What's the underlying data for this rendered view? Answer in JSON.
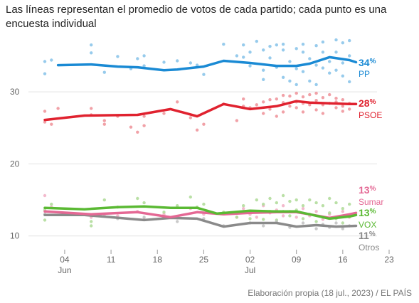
{
  "title": "Las líneas representan el promedio de votos de cada partido; cada punto es una encuesta individual",
  "source": "Elaboración propia (18 jul., 2023) / EL PAÍS",
  "chart_data": {
    "type": "line",
    "title": "Las líneas representan el promedio de votos de cada partido; cada punto es una encuesta individual",
    "xlabel": "",
    "ylabel": "",
    "x_range": [
      "2023-06-01",
      "2023-07-23"
    ],
    "ylim": [
      8,
      38
    ],
    "y_ticks": [
      10,
      20,
      30
    ],
    "x_ticks": [
      {
        "date": "2023-06-04",
        "label": "04",
        "month": "Jun"
      },
      {
        "date": "2023-06-11",
        "label": "11",
        "month": ""
      },
      {
        "date": "2023-06-18",
        "label": "18",
        "month": ""
      },
      {
        "date": "2023-06-25",
        "label": "25",
        "month": ""
      },
      {
        "date": "2023-07-02",
        "label": "02",
        "month": "Jul"
      },
      {
        "date": "2023-07-09",
        "label": "09",
        "month": ""
      },
      {
        "date": "2023-07-16",
        "label": "16",
        "month": ""
      },
      {
        "date": "2023-07-23",
        "label": "23",
        "month": ""
      }
    ],
    "grid": "horizontal",
    "series": [
      {
        "name": "PP",
        "label_value": "34",
        "pct": "%",
        "color": "#1a8ad4",
        "dot_color": "#8cc5ea",
        "x": [
          "2023-06-03",
          "2023-06-08",
          "2023-06-12",
          "2023-06-15",
          "2023-06-19",
          "2023-06-21",
          "2023-06-25",
          "2023-06-28",
          "2023-07-02",
          "2023-07-06",
          "2023-07-09",
          "2023-07-11",
          "2023-07-14",
          "2023-07-17",
          "2023-07-18"
        ],
        "y": [
          33.7,
          33.8,
          33.5,
          33.4,
          33.0,
          33.1,
          33.5,
          34.3,
          34.0,
          33.6,
          33.6,
          33.9,
          34.8,
          34.4,
          34.1
        ],
        "polls": [
          [
            "2023-06-01",
            34.2
          ],
          [
            "2023-06-01",
            32.5
          ],
          [
            "2023-06-02",
            34.4
          ],
          [
            "2023-06-08",
            36.5
          ],
          [
            "2023-06-08",
            35.4
          ],
          [
            "2023-06-10",
            32.7
          ],
          [
            "2023-06-12",
            34.9
          ],
          [
            "2023-06-14",
            33.2
          ],
          [
            "2023-06-15",
            34.6
          ],
          [
            "2023-06-16",
            35.0
          ],
          [
            "2023-06-16",
            33.6
          ],
          [
            "2023-06-19",
            34.1
          ],
          [
            "2023-06-21",
            34.3
          ],
          [
            "2023-06-23",
            34.0
          ],
          [
            "2023-06-24",
            33.7
          ],
          [
            "2023-06-25",
            32.4
          ],
          [
            "2023-06-28",
            36.6
          ],
          [
            "2023-06-30",
            35.0
          ],
          [
            "2023-07-01",
            34.8
          ],
          [
            "2023-07-01",
            36.5
          ],
          [
            "2023-07-02",
            35.5
          ],
          [
            "2023-07-02",
            33.6
          ],
          [
            "2023-07-03",
            37.0
          ],
          [
            "2023-07-04",
            35.8
          ],
          [
            "2023-07-04",
            31.7
          ],
          [
            "2023-07-04",
            33.0
          ],
          [
            "2023-07-05",
            36.3
          ],
          [
            "2023-07-05",
            34.7
          ],
          [
            "2023-07-06",
            36.5
          ],
          [
            "2023-07-06",
            33.4
          ],
          [
            "2023-07-07",
            35.8
          ],
          [
            "2023-07-07",
            32.0
          ],
          [
            "2023-07-07",
            36.6
          ],
          [
            "2023-07-08",
            34.2
          ],
          [
            "2023-07-08",
            31.5
          ],
          [
            "2023-07-09",
            36.0
          ],
          [
            "2023-07-09",
            33.2
          ],
          [
            "2023-07-09",
            31.0
          ],
          [
            "2023-07-10",
            35.5
          ],
          [
            "2023-07-10",
            36.6
          ],
          [
            "2023-07-10",
            32.8
          ],
          [
            "2023-07-11",
            34.6
          ],
          [
            "2023-07-11",
            31.5
          ],
          [
            "2023-07-12",
            36.4
          ],
          [
            "2023-07-12",
            33.7
          ],
          [
            "2023-07-12",
            31.0
          ],
          [
            "2023-07-13",
            35.5
          ],
          [
            "2023-07-13",
            33.3
          ],
          [
            "2023-07-13",
            36.9
          ],
          [
            "2023-07-14",
            34.2
          ],
          [
            "2023-07-14",
            32.6
          ],
          [
            "2023-07-15",
            37.2
          ],
          [
            "2023-07-15",
            35.5
          ],
          [
            "2023-07-15",
            33.0
          ],
          [
            "2023-07-16",
            36.8
          ],
          [
            "2023-07-16",
            34.0
          ],
          [
            "2023-07-16",
            32.2
          ],
          [
            "2023-07-17",
            37.1
          ],
          [
            "2023-07-17",
            35.0
          ],
          [
            "2023-07-17",
            31.4
          ]
        ]
      },
      {
        "name": "PSOE",
        "label_value": "28",
        "pct": "%",
        "color": "#e0222f",
        "dot_color": "#f0979d",
        "x": [
          "2023-06-01",
          "2023-06-07",
          "2023-06-15",
          "2023-06-20",
          "2023-06-24",
          "2023-06-28",
          "2023-07-02",
          "2023-07-06",
          "2023-07-09",
          "2023-07-11",
          "2023-07-14",
          "2023-07-17",
          "2023-07-18"
        ],
        "y": [
          26.1,
          26.7,
          26.8,
          27.6,
          26.6,
          28.3,
          27.6,
          28.0,
          28.7,
          28.5,
          28.4,
          28.3,
          28.3
        ],
        "polls": [
          [
            "2023-06-01",
            27.3
          ],
          [
            "2023-06-01",
            25.8
          ],
          [
            "2023-06-02",
            25.5
          ],
          [
            "2023-06-03",
            27.7
          ],
          [
            "2023-06-08",
            27.7
          ],
          [
            "2023-06-08",
            26.8
          ],
          [
            "2023-06-10",
            25.5
          ],
          [
            "2023-06-10",
            26.0
          ],
          [
            "2023-06-12",
            26.6
          ],
          [
            "2023-06-14",
            25.1
          ],
          [
            "2023-06-15",
            24.4
          ],
          [
            "2023-06-16",
            25.3
          ],
          [
            "2023-06-16",
            26.6
          ],
          [
            "2023-06-19",
            27.0
          ],
          [
            "2023-06-21",
            28.6
          ],
          [
            "2023-06-23",
            26.4
          ],
          [
            "2023-06-24",
            24.7
          ],
          [
            "2023-06-25",
            25.5
          ],
          [
            "2023-06-28",
            28.3
          ],
          [
            "2023-06-30",
            26.0
          ],
          [
            "2023-07-01",
            28.0
          ],
          [
            "2023-07-01",
            29.0
          ],
          [
            "2023-07-02",
            27.8
          ],
          [
            "2023-07-03",
            28.2
          ],
          [
            "2023-07-04",
            28.6
          ],
          [
            "2023-07-04",
            27.0
          ],
          [
            "2023-07-05",
            28.9
          ],
          [
            "2023-07-05",
            27.6
          ],
          [
            "2023-07-06",
            29.0
          ],
          [
            "2023-07-06",
            26.6
          ],
          [
            "2023-07-07",
            28.5
          ],
          [
            "2023-07-07",
            29.5
          ],
          [
            "2023-07-07",
            27.2
          ],
          [
            "2023-07-08",
            28.0
          ],
          [
            "2023-07-08",
            29.4
          ],
          [
            "2023-07-09",
            28.6
          ],
          [
            "2023-07-09",
            27.8
          ],
          [
            "2023-07-09",
            29.8
          ],
          [
            "2023-07-10",
            28.4
          ],
          [
            "2023-07-10",
            27.2
          ],
          [
            "2023-07-10",
            29.3
          ],
          [
            "2023-07-11",
            28.2
          ],
          [
            "2023-07-11",
            29.6
          ],
          [
            "2023-07-12",
            27.5
          ],
          [
            "2023-07-12",
            28.8
          ],
          [
            "2023-07-12",
            29.8
          ],
          [
            "2023-07-13",
            28.2
          ],
          [
            "2023-07-13",
            27.0
          ],
          [
            "2023-07-13",
            29.2
          ],
          [
            "2023-07-14",
            28.4
          ],
          [
            "2023-07-14",
            29.6
          ],
          [
            "2023-07-15",
            27.8
          ],
          [
            "2023-07-15",
            28.6
          ],
          [
            "2023-07-15",
            29.1
          ],
          [
            "2023-07-16",
            28.0
          ],
          [
            "2023-07-16",
            27.3
          ],
          [
            "2023-07-16",
            28.9
          ],
          [
            "2023-07-17",
            28.4
          ],
          [
            "2023-07-17",
            27.6
          ]
        ]
      },
      {
        "name": "Sumar",
        "label_value": "13",
        "pct": "%",
        "color": "#e46894",
        "dot_color": "#f2b3c8",
        "x": [
          "2023-06-01",
          "2023-06-08",
          "2023-06-15",
          "2023-06-20",
          "2023-06-24",
          "2023-06-28",
          "2023-07-02",
          "2023-07-06",
          "2023-07-09",
          "2023-07-11",
          "2023-07-14",
          "2023-07-17",
          "2023-07-18"
        ],
        "y": [
          13.4,
          13.0,
          13.3,
          12.6,
          13.3,
          13.0,
          13.2,
          13.3,
          13.3,
          13.0,
          12.5,
          13.0,
          13.2
        ],
        "polls": [
          [
            "2023-06-01",
            15.6
          ],
          [
            "2023-06-02",
            14.0
          ],
          [
            "2023-06-08",
            12.6
          ],
          [
            "2023-06-10",
            13.0
          ],
          [
            "2023-06-12",
            12.8
          ],
          [
            "2023-06-15",
            13.4
          ],
          [
            "2023-06-16",
            12.3
          ],
          [
            "2023-06-19",
            13.0
          ],
          [
            "2023-06-21",
            12.5
          ],
          [
            "2023-06-23",
            13.8
          ],
          [
            "2023-06-25",
            13.0
          ],
          [
            "2023-06-28",
            13.2
          ],
          [
            "2023-06-30",
            12.6
          ],
          [
            "2023-07-01",
            13.8
          ],
          [
            "2023-07-02",
            13.0
          ],
          [
            "2023-07-03",
            12.6
          ],
          [
            "2023-07-04",
            14.2
          ],
          [
            "2023-07-05",
            13.2
          ],
          [
            "2023-07-06",
            13.6
          ],
          [
            "2023-07-07",
            12.8
          ],
          [
            "2023-07-07",
            14.2
          ],
          [
            "2023-07-08",
            13.4
          ],
          [
            "2023-07-09",
            12.6
          ],
          [
            "2023-07-10",
            13.8
          ],
          [
            "2023-07-11",
            12.8
          ],
          [
            "2023-07-12",
            13.4
          ],
          [
            "2023-07-13",
            12.3
          ],
          [
            "2023-07-14",
            13.0
          ],
          [
            "2023-07-15",
            12.6
          ],
          [
            "2023-07-16",
            13.4
          ],
          [
            "2023-07-17",
            12.6
          ]
        ]
      },
      {
        "name": "VOX",
        "label_value": "13",
        "pct": "%",
        "color": "#5ab933",
        "dot_color": "#b3dd9c",
        "x": [
          "2023-06-01",
          "2023-06-07",
          "2023-06-12",
          "2023-06-16",
          "2023-06-20",
          "2023-06-24",
          "2023-06-27",
          "2023-07-02",
          "2023-07-06",
          "2023-07-09",
          "2023-07-11",
          "2023-07-14",
          "2023-07-17",
          "2023-07-18"
        ],
        "y": [
          13.9,
          13.7,
          14.0,
          14.1,
          13.9,
          13.9,
          13.1,
          13.5,
          13.4,
          13.4,
          13.0,
          12.4,
          12.7,
          12.9
        ],
        "polls": [
          [
            "2023-06-01",
            13.6
          ],
          [
            "2023-06-01",
            12.2
          ],
          [
            "2023-06-02",
            14.4
          ],
          [
            "2023-06-08",
            12.0
          ],
          [
            "2023-06-08",
            11.4
          ],
          [
            "2023-06-10",
            15.0
          ],
          [
            "2023-06-12",
            14.0
          ],
          [
            "2023-06-15",
            15.2
          ],
          [
            "2023-06-16",
            14.6
          ],
          [
            "2023-06-19",
            13.3
          ],
          [
            "2023-06-21",
            14.2
          ],
          [
            "2023-06-23",
            15.4
          ],
          [
            "2023-06-24",
            14.0
          ],
          [
            "2023-06-25",
            14.4
          ],
          [
            "2023-06-28",
            13.3
          ],
          [
            "2023-06-30",
            12.6
          ],
          [
            "2023-07-01",
            14.2
          ],
          [
            "2023-07-02",
            12.4
          ],
          [
            "2023-07-03",
            15.0
          ],
          [
            "2023-07-04",
            14.4
          ],
          [
            "2023-07-04",
            12.3
          ],
          [
            "2023-07-05",
            13.4
          ],
          [
            "2023-07-05",
            15.2
          ],
          [
            "2023-07-06",
            14.6
          ],
          [
            "2023-07-06",
            12.2
          ],
          [
            "2023-07-07",
            15.6
          ],
          [
            "2023-07-07",
            13.4
          ],
          [
            "2023-07-08",
            14.8
          ],
          [
            "2023-07-08",
            12.8
          ],
          [
            "2023-07-09",
            15.0
          ],
          [
            "2023-07-09",
            13.6
          ],
          [
            "2023-07-10",
            14.2
          ],
          [
            "2023-07-10",
            12.4
          ],
          [
            "2023-07-11",
            15.0
          ],
          [
            "2023-07-11",
            13.0
          ],
          [
            "2023-07-12",
            14.6
          ],
          [
            "2023-07-12",
            12.0
          ],
          [
            "2023-07-13",
            14.2
          ],
          [
            "2023-07-13",
            12.6
          ],
          [
            "2023-07-14",
            15.2
          ],
          [
            "2023-07-14",
            13.2
          ],
          [
            "2023-07-15",
            14.6
          ],
          [
            "2023-07-15",
            12.4
          ],
          [
            "2023-07-16",
            13.8
          ],
          [
            "2023-07-16",
            11.8
          ],
          [
            "2023-07-17",
            14.4
          ],
          [
            "2023-07-17",
            12.8
          ]
        ]
      },
      {
        "name": "Otros",
        "label_value": "11",
        "pct": "%",
        "color": "#8a8a8a",
        "dot_color": "#c4c4c4",
        "x": [
          "2023-06-01",
          "2023-06-07",
          "2023-06-11",
          "2023-06-16",
          "2023-06-20",
          "2023-06-24",
          "2023-06-28",
          "2023-07-02",
          "2023-07-06",
          "2023-07-09",
          "2023-07-12",
          "2023-07-15",
          "2023-07-18"
        ],
        "y": [
          12.9,
          12.9,
          12.6,
          12.2,
          12.5,
          12.4,
          11.3,
          11.8,
          11.8,
          11.3,
          11.5,
          11.3,
          11.4
        ],
        "polls": [
          [
            "2023-06-01",
            13.0
          ],
          [
            "2023-06-08",
            12.9
          ],
          [
            "2023-06-12",
            12.4
          ],
          [
            "2023-06-16",
            12.6
          ],
          [
            "2023-06-21",
            12.0
          ],
          [
            "2023-06-25",
            12.4
          ],
          [
            "2023-06-28",
            11.4
          ],
          [
            "2023-07-02",
            11.8
          ],
          [
            "2023-07-04",
            11.4
          ],
          [
            "2023-07-06",
            12.0
          ],
          [
            "2023-07-08",
            11.2
          ],
          [
            "2023-07-10",
            11.8
          ],
          [
            "2023-07-12",
            11.0
          ],
          [
            "2023-07-13",
            11.6
          ],
          [
            "2023-07-14",
            11.2
          ],
          [
            "2023-07-15",
            11.8
          ],
          [
            "2023-07-16",
            11.0
          ],
          [
            "2023-07-17",
            11.4
          ]
        ]
      }
    ]
  }
}
